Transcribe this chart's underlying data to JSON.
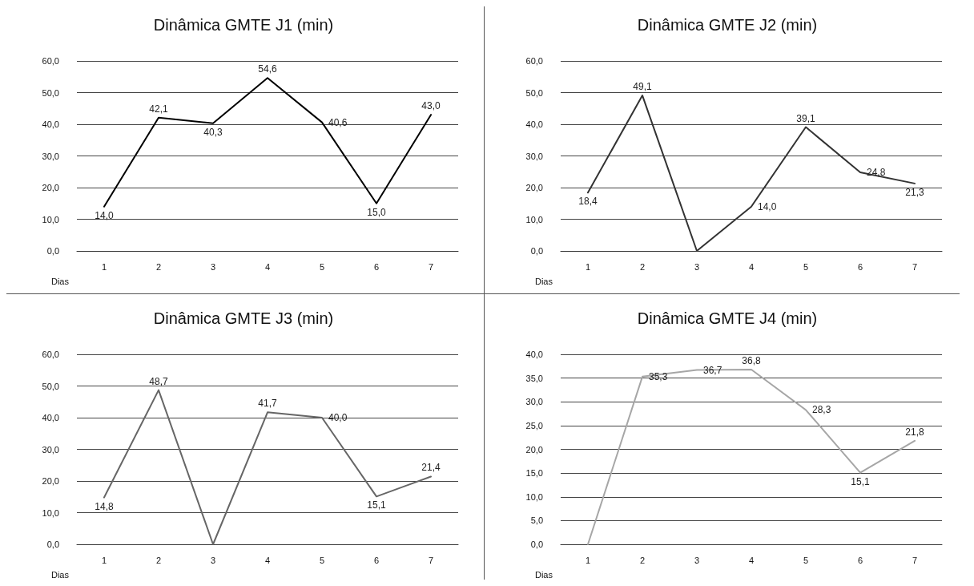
{
  "chart_data": [
    {
      "type": "line",
      "title": "Dinâmica GMTE J1 (min)",
      "xlabel": "Dias",
      "categories": [
        "1",
        "2",
        "3",
        "4",
        "5",
        "6",
        "7"
      ],
      "series": [
        {
          "color": "#000000",
          "values": [
            14.0,
            42.1,
            40.3,
            54.6,
            40.6,
            15.0,
            43.0
          ],
          "value_labels": [
            "14,0",
            "42,1",
            "40,3",
            "54,6",
            "40,6",
            "15,0",
            "43,0"
          ]
        }
      ],
      "ylim": [
        0,
        60
      ],
      "yticks": [
        {
          "value": 0,
          "label": "0,0"
        },
        {
          "value": 10,
          "label": "10,0"
        },
        {
          "value": 20,
          "label": "20,0"
        },
        {
          "value": 30,
          "label": "30,0"
        },
        {
          "value": 40,
          "label": "40,0"
        },
        {
          "value": 50,
          "label": "50,0"
        },
        {
          "value": 60,
          "label": "60,0"
        }
      ],
      "grid": "y",
      "marker": "none",
      "line_style": "solid"
    },
    {
      "type": "line",
      "title": "Dinâmica GMTE J2 (min)",
      "xlabel": "Dias",
      "categories": [
        "1",
        "2",
        "3",
        "4",
        "5",
        "6",
        "7"
      ],
      "series": [
        {
          "color": "#333333",
          "values": [
            18.4,
            49.1,
            0,
            14.0,
            39.1,
            24.8,
            21.3
          ],
          "value_labels": [
            "18,4",
            "49,1",
            null,
            "14,0",
            "39,1",
            "24,8",
            "21,3"
          ]
        }
      ],
      "ylim": [
        0,
        60
      ],
      "yticks": [
        {
          "value": 0,
          "label": "0,0"
        },
        {
          "value": 10,
          "label": "10,0"
        },
        {
          "value": 20,
          "label": "20,0"
        },
        {
          "value": 30,
          "label": "30,0"
        },
        {
          "value": 40,
          "label": "40,0"
        },
        {
          "value": 50,
          "label": "50,0"
        },
        {
          "value": 60,
          "label": "60,0"
        }
      ],
      "grid": "y",
      "marker": "none",
      "line_style": "solid"
    },
    {
      "type": "line",
      "title": "Dinâmica GMTE J3 (min)",
      "xlabel": "Dias",
      "categories": [
        "1",
        "2",
        "3",
        "4",
        "5",
        "6",
        "7"
      ],
      "series": [
        {
          "color": "#666666",
          "values": [
            14.8,
            48.7,
            0,
            41.7,
            40.0,
            15.1,
            21.4
          ],
          "value_labels": [
            "14,8",
            "48,7",
            null,
            "41,7",
            "40,0",
            "15,1",
            "21,4"
          ]
        }
      ],
      "ylim": [
        0,
        60
      ],
      "yticks": [
        {
          "value": 0,
          "label": "0,0"
        },
        {
          "value": 10,
          "label": "10,0"
        },
        {
          "value": 20,
          "label": "20,0"
        },
        {
          "value": 30,
          "label": "30,0"
        },
        {
          "value": 40,
          "label": "40,0"
        },
        {
          "value": 50,
          "label": "50,0"
        },
        {
          "value": 60,
          "label": "60,0"
        }
      ],
      "grid": "y",
      "marker": "none",
      "line_style": "solid"
    },
    {
      "type": "line",
      "title": "Dinâmica GMTE J4 (min)",
      "xlabel": "Dias",
      "categories": [
        "1",
        "2",
        "3",
        "4",
        "5",
        "6",
        "7"
      ],
      "series": [
        {
          "color": "#a6a6a6",
          "values": [
            0,
            35.3,
            36.7,
            36.8,
            28.3,
            15.1,
            21.8
          ],
          "value_labels": [
            null,
            "35,3",
            "36,7",
            "36,8",
            "28,3",
            "15,1",
            "21,8"
          ]
        }
      ],
      "ylim": [
        0,
        40
      ],
      "yticks": [
        {
          "value": 0,
          "label": "0,0"
        },
        {
          "value": 5,
          "label": "5,0"
        },
        {
          "value": 10,
          "label": "10,0"
        },
        {
          "value": 15,
          "label": "15,0"
        },
        {
          "value": 20,
          "label": "20,0"
        },
        {
          "value": 25,
          "label": "25,0"
        },
        {
          "value": 30,
          "label": "30,0"
        },
        {
          "value": 35,
          "label": "35,0"
        },
        {
          "value": 40,
          "label": "40,0"
        }
      ],
      "grid": "y",
      "marker": "none",
      "line_style": "solid"
    }
  ]
}
